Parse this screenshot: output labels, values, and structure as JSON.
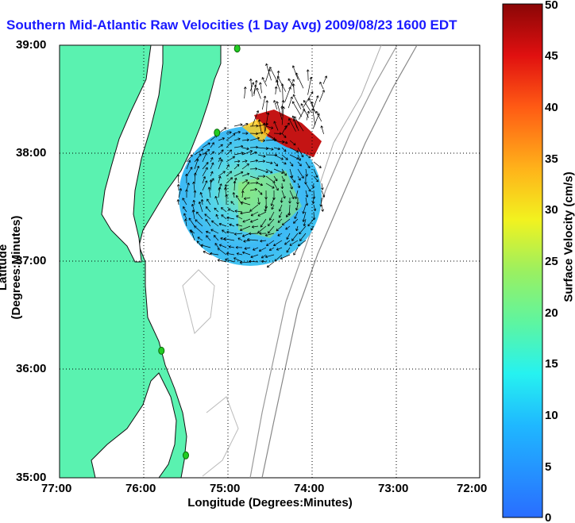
{
  "title": "Southern Mid-Atlantic Raw Velocities (1 Day Avg) 2009/08/23 1600 EDT",
  "xlabel": "Longitude (Degrees:Minutes)",
  "ylabel": "Latitude (Degrees:Minutes)",
  "colorbar": {
    "label": "Surface Velocity (cm/s)",
    "ticks": [
      "0",
      "5",
      "10",
      "15",
      "20",
      "25",
      "30",
      "35",
      "40",
      "45",
      "50"
    ],
    "min": 0,
    "max": 50
  },
  "x_ticks": [
    "77:00",
    "76:00",
    "75:00",
    "74:00",
    "73:00",
    "72:00"
  ],
  "y_ticks": [
    "39:00",
    "38:00",
    "37:00",
    "36:00",
    "35:00"
  ],
  "colors": {
    "land": "#5af2b0",
    "title": "#1a1aff",
    "station": "#22cc22"
  },
  "stations": [
    {
      "lon": -74.89,
      "lat": 38.97
    },
    {
      "lon": -75.13,
      "lat": 38.19
    },
    {
      "lon": -75.79,
      "lat": 36.17
    },
    {
      "lon": -75.5,
      "lat": 35.2
    }
  ]
}
